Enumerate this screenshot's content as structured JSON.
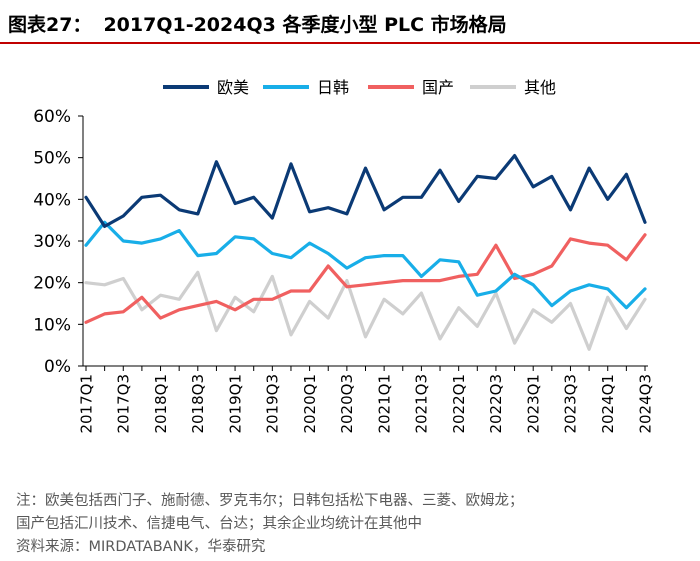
{
  "figure": {
    "number_label": "图表27：",
    "title": "2017Q1-2024Q3 各季度小型 PLC 市场格局"
  },
  "notes": {
    "line1": "注：欧美包括西门子、施耐德、罗克韦尔；日韩包括松下电器、三菱、欧姆龙；",
    "line2": "国产包括汇川技术、信捷电气、台达；其余企业均统计在其他中",
    "source": "资料来源：MIRDATABANK，华泰研究"
  },
  "colors": {
    "欧美": "#0b3a75",
    "日韩": "#18aee8",
    "国产": "#f06060",
    "其他": "#cfcfcf",
    "title_rule": "#c00000",
    "axis": "#000000"
  },
  "chart_data": {
    "type": "line",
    "title": "2017Q1-2024Q3 各季度小型 PLC 市场格局",
    "xlabel": "",
    "ylabel": "",
    "ylim": [
      0,
      60
    ],
    "y_ticks": [
      "0%",
      "10%",
      "20%",
      "30%",
      "40%",
      "50%",
      "60%"
    ],
    "y_unit": "%",
    "grid": false,
    "legend_position": "top",
    "x_tick_labels": [
      "2017Q1",
      "2017Q3",
      "2018Q1",
      "2018Q3",
      "2019Q1",
      "2019Q3",
      "2020Q1",
      "2020Q3",
      "2021Q1",
      "2021Q3",
      "2022Q1",
      "2022Q3",
      "2023Q1",
      "2023Q3",
      "2024Q1",
      "2024Q3"
    ],
    "x": [
      "2017Q1",
      "2017Q2",
      "2017Q3",
      "2017Q4",
      "2018Q1",
      "2018Q2",
      "2018Q3",
      "2018Q4",
      "2019Q1",
      "2019Q2",
      "2019Q3",
      "2019Q4",
      "2020Q1",
      "2020Q2",
      "2020Q3",
      "2020Q4",
      "2021Q1",
      "2021Q2",
      "2021Q3",
      "2021Q4",
      "2022Q1",
      "2022Q2",
      "2022Q3",
      "2022Q4",
      "2023Q1",
      "2023Q2",
      "2023Q3",
      "2023Q4",
      "2024Q1",
      "2024Q2",
      "2024Q3"
    ],
    "series": [
      {
        "name": "欧美",
        "color": "#0b3a75",
        "values": [
          40.5,
          33.5,
          36,
          40.5,
          41,
          37.5,
          36.5,
          49,
          39,
          40.5,
          35.5,
          48.5,
          37,
          38,
          36.5,
          47.5,
          37.5,
          40.5,
          40.5,
          47,
          39.5,
          45.5,
          45,
          50.5,
          43,
          45.5,
          37.5,
          47.5,
          40,
          46,
          34.5
        ]
      },
      {
        "name": "日韩",
        "color": "#18aee8",
        "values": [
          29,
          34.5,
          30,
          29.5,
          30.5,
          32.5,
          26.5,
          27,
          31,
          30.5,
          27,
          26,
          29.5,
          27,
          23.5,
          26,
          26.5,
          26.5,
          21.5,
          25.5,
          25,
          17,
          18,
          22,
          19.5,
          14.5,
          18,
          19.5,
          18.5,
          14,
          18.5
        ]
      },
      {
        "name": "国产",
        "color": "#f06060",
        "values": [
          10.5,
          12.5,
          13,
          16.5,
          11.5,
          13.5,
          14.5,
          15.5,
          13.5,
          16,
          16,
          18,
          18,
          24,
          19,
          19.5,
          20,
          20.5,
          20.5,
          20.5,
          21.5,
          22,
          29,
          21,
          22,
          24,
          30.5,
          29.5,
          29,
          25.5,
          31.5
        ]
      },
      {
        "name": "其他",
        "color": "#cfcfcf",
        "values": [
          20,
          19.5,
          21,
          13.5,
          17,
          16,
          22.5,
          8.5,
          16.5,
          13,
          21.5,
          7.5,
          15.5,
          11.5,
          20.5,
          7,
          16,
          12.5,
          17.5,
          6.5,
          14,
          9.5,
          17.5,
          5.5,
          13.5,
          10.5,
          15,
          4,
          16.5,
          9,
          16
        ]
      }
    ]
  }
}
